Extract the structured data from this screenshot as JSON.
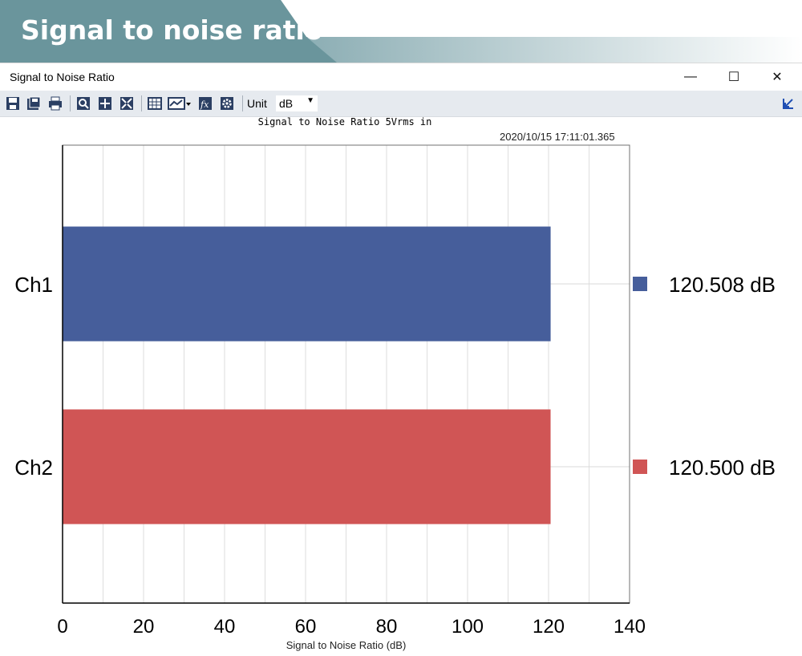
{
  "banner": {
    "title": "Signal to noise ratio"
  },
  "window": {
    "title": "Signal to Noise Ratio",
    "controls": {
      "minimize": "—",
      "maximize": "☐",
      "close": "✕"
    }
  },
  "toolbar": {
    "icons": [
      "save-icon",
      "save-all-icon",
      "print-icon",
      "zoom-icon",
      "pan-icon",
      "fit-icon",
      "table-icon",
      "chart-type-icon",
      "function-icon",
      "settings-icon",
      "expand-icon"
    ],
    "unit_label": "Unit",
    "unit_value": "dB"
  },
  "chart": {
    "title": "Signal to Noise Ratio  5Vrms in",
    "timestamp": "2020/10/15 17:11:01.365"
  },
  "chart_data": {
    "type": "bar",
    "orientation": "horizontal",
    "title": "Signal to Noise Ratio  5Vrms in",
    "xlabel": "Signal to Noise Ratio (dB)",
    "ylabel": "",
    "xlim": [
      0,
      140
    ],
    "x_ticks": [
      0,
      20,
      40,
      60,
      80,
      100,
      120,
      140
    ],
    "grid": true,
    "categories": [
      "Ch1",
      "Ch2"
    ],
    "values": [
      120.508,
      120.5
    ],
    "value_labels": [
      "120.508 dB",
      "120.500 dB"
    ],
    "colors": [
      "#465e9b",
      "#d05555"
    ],
    "legend_position": "right"
  }
}
